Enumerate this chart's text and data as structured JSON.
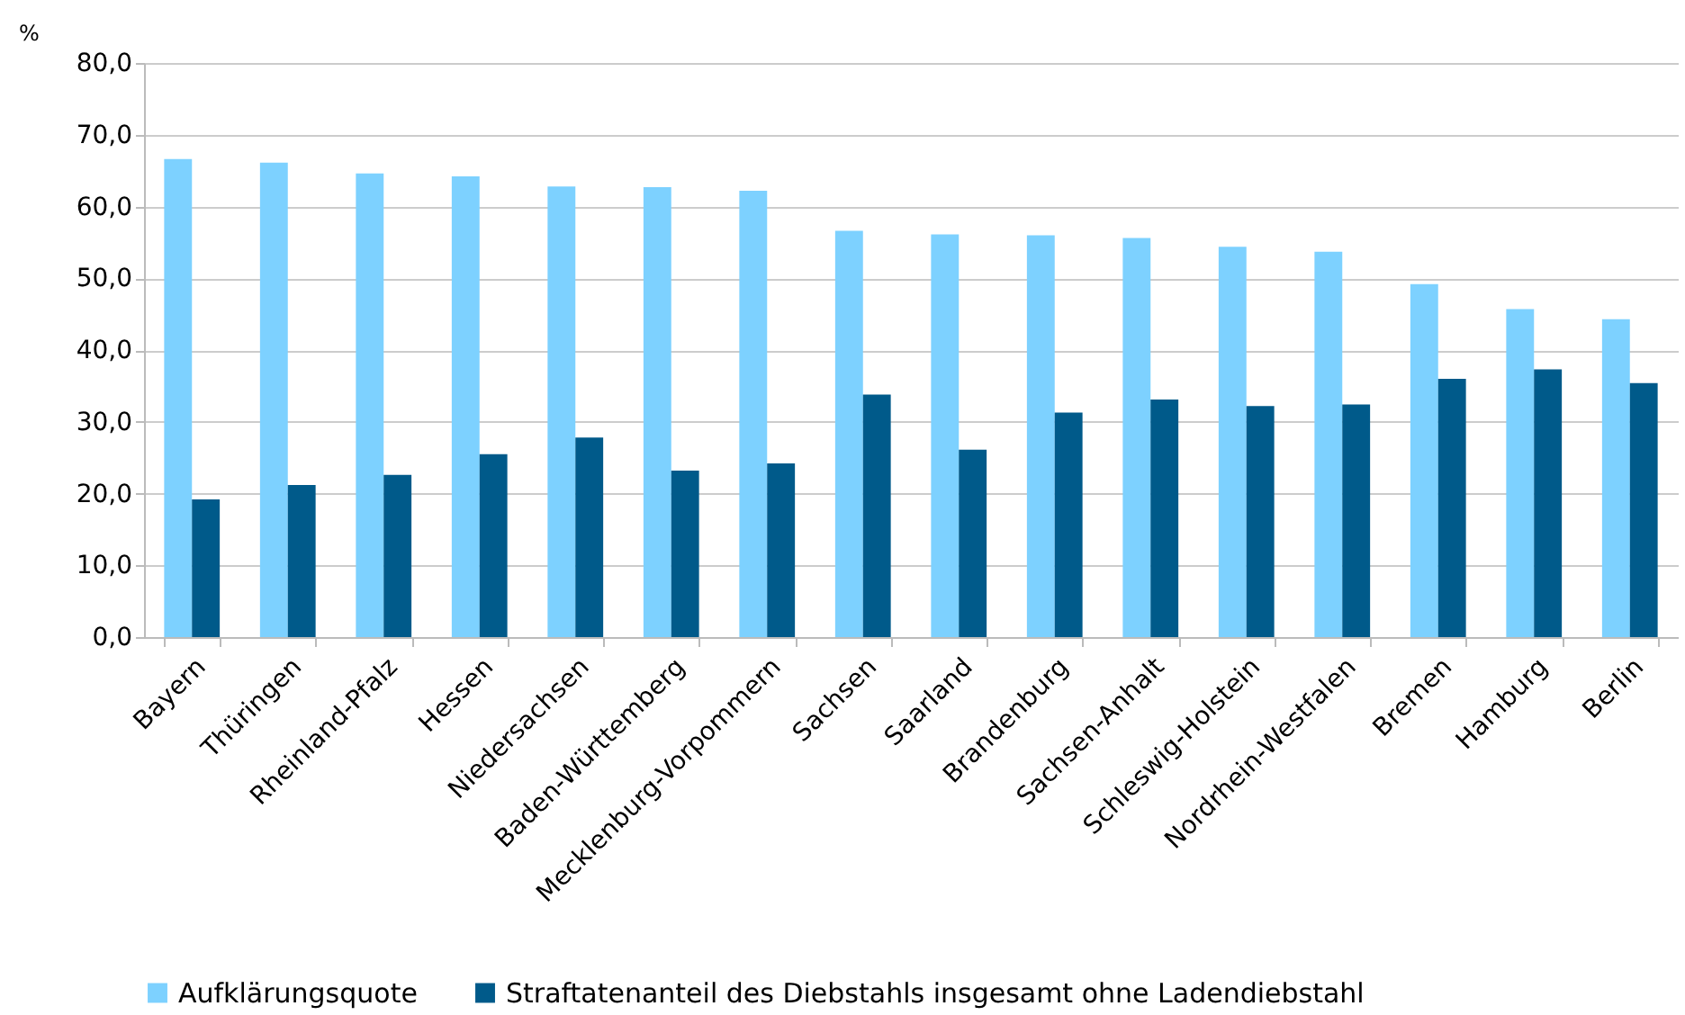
{
  "chart_data": {
    "type": "bar",
    "ylabel": "%",
    "categories": [
      "Bayern",
      "Thüringen",
      "Rheinland-Pfalz",
      "Hessen",
      "Niedersachsen",
      "Baden-Württemberg",
      "Mecklenburg-Vorpommern",
      "Sachsen",
      "Saarland",
      "Brandenburg",
      "Sachsen-Anhalt",
      "Schleswig-Holstein",
      "Nordrhein-Westfalen",
      "Bremen",
      "Hamburg",
      "Berlin"
    ],
    "series": [
      {
        "name": "Aufklärungsquote",
        "color": "#7dd1ff",
        "values": [
          66.6,
          66.1,
          64.6,
          64.2,
          62.8,
          62.7,
          62.2,
          56.6,
          56.1,
          56.0,
          55.6,
          54.4,
          53.7,
          49.2,
          45.7,
          44.3
        ]
      },
      {
        "name": "Straftatenanteil des Diebstahls insgesamt ohne Ladendiebstahl",
        "color": "#005a8a",
        "values": [
          19.2,
          21.2,
          22.6,
          25.5,
          27.8,
          23.2,
          24.2,
          33.8,
          26.1,
          31.3,
          33.1,
          32.2,
          32.4,
          36.0,
          37.3,
          35.4
        ]
      }
    ],
    "ylim": [
      0,
      80
    ],
    "yticks": [
      {
        "value": 0,
        "label": "0,0"
      },
      {
        "value": 10,
        "label": "10,0"
      },
      {
        "value": 20,
        "label": "20,0"
      },
      {
        "value": 30,
        "label": "30,0"
      },
      {
        "value": 40,
        "label": "40,0"
      },
      {
        "value": 50,
        "label": "50,0"
      },
      {
        "value": 60,
        "label": "60,0"
      },
      {
        "value": 70,
        "label": "70,0"
      },
      {
        "value": 80,
        "label": "80,0"
      }
    ],
    "grid": "y",
    "legend": "bottom"
  }
}
